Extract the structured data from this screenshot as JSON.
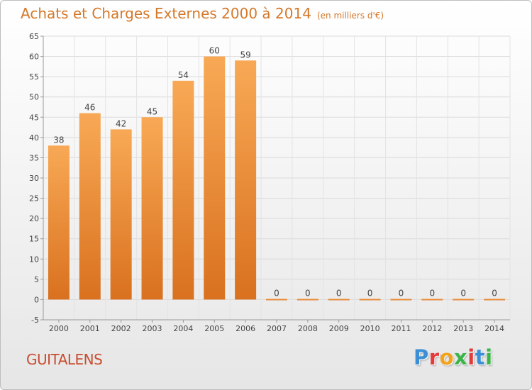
{
  "title": "Achats et Charges Externes 2000 à 2014",
  "unit_label": "(en milliers d'€)",
  "place": "GUITALENS",
  "logo": "Proxiti",
  "colors": {
    "title": "#d4782a",
    "place": "#c84d2f",
    "bar_top": "#f8a955",
    "bar_bottom": "#d9711f",
    "logo_letters": [
      "#3a8fd6",
      "#e23b3b",
      "#f2a21b",
      "#3bb54a",
      "#e23b3b",
      "#3a8fd6",
      "#3bb54a"
    ]
  },
  "chart_data": {
    "type": "bar",
    "categories": [
      "2000",
      "2001",
      "2002",
      "2003",
      "2004",
      "2005",
      "2006",
      "2007",
      "2008",
      "2009",
      "2010",
      "2011",
      "2012",
      "2013",
      "2014"
    ],
    "values": [
      38,
      46,
      42,
      45,
      54,
      60,
      59,
      0,
      0,
      0,
      0,
      0,
      0,
      0,
      0
    ],
    "ylim": [
      -5,
      65
    ],
    "yticks": [
      -5,
      0,
      5,
      10,
      15,
      20,
      25,
      30,
      35,
      40,
      45,
      50,
      55,
      60,
      65
    ],
    "grid": true,
    "xlabel": "",
    "ylabel": ""
  }
}
